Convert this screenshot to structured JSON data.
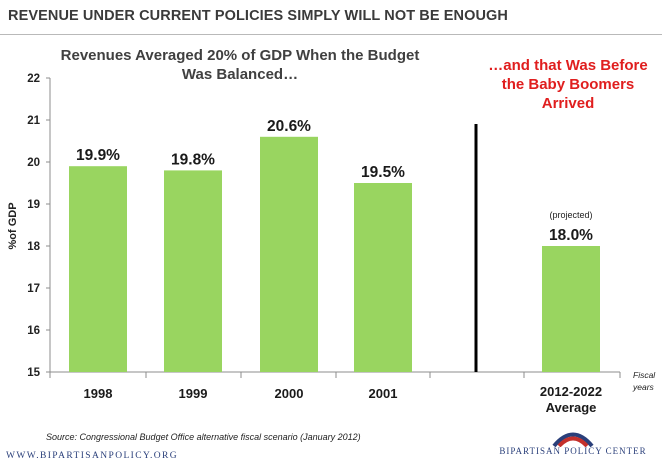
{
  "header": {
    "title": "REVENUE UNDER CURRENT POLICIES SIMPLY WILL NOT BE ENOUGH"
  },
  "chart_data": {
    "type": "bar",
    "title": "Revenues Averaged 20% of GDP When the Budget Was Balanced…",
    "ylabel": "%of GDP",
    "xlabel": "Fiscal years",
    "ylim": [
      15,
      22
    ],
    "yticks": [
      15,
      16,
      17,
      18,
      19,
      20,
      21,
      22
    ],
    "grid": false,
    "categories": [
      "1998",
      "1999",
      "2000",
      "2001",
      "2012-2022 Average"
    ],
    "values": [
      19.9,
      19.8,
      20.6,
      19.5,
      18.0
    ],
    "data_labels": [
      "19.9%",
      "19.8%",
      "20.6%",
      "19.5%",
      "18.0%"
    ],
    "annotations": [
      "(projected)",
      "…and that Was Before the Baby Boomers Arrived"
    ],
    "colors": {
      "bar": "#99d560",
      "callout": "#e01e1e",
      "divider": "#000000"
    }
  },
  "callout": "…and that Was Before the Baby Boomers Arrived",
  "footer": {
    "source": "Source: Congressional Budget Office alternative fiscal scenario (January 2012)",
    "website": "WWW.BIPARTISANPOLICY.ORG",
    "logo_text": "BIPARTISAN POLICY CENTER",
    "logo_icon": "arc-logo-icon"
  }
}
